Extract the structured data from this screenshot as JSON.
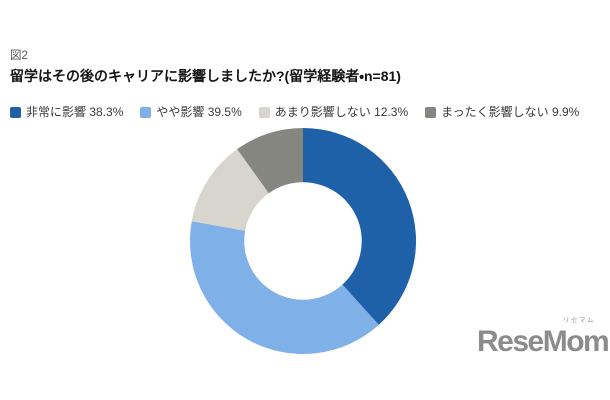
{
  "figure_label": "図2",
  "title": "留学はその後のキャリアに影響しましたか?(留学経験者・n=81)",
  "chart_data": {
    "type": "pie",
    "variant": "donut",
    "title": "留学はその後のキャリアに影響しましたか?(留学経験者・n=81)",
    "sample_note": "留学経験者・n=81",
    "categories": [
      "非常に影響",
      "やや影響",
      "あまり影響しない",
      "まったく影響しない"
    ],
    "values": [
      38.3,
      39.5,
      12.3,
      9.9
    ],
    "unit": "%",
    "colors": [
      "#1E61A8",
      "#7FB0E8",
      "#D7D5CE",
      "#85867F"
    ],
    "legend_labels": [
      "非常に影響 38.3%",
      "やや影響 39.5%",
      "あまり影響しない 12.3%",
      "まったく影響しない 9.9%"
    ],
    "legend_position": "top-left",
    "start_angle_deg": 0,
    "direction": "clockwise",
    "inner_radius_ratio": 0.52
  },
  "logo": {
    "text": "ReseMom.",
    "ruby": "リセマム"
  }
}
